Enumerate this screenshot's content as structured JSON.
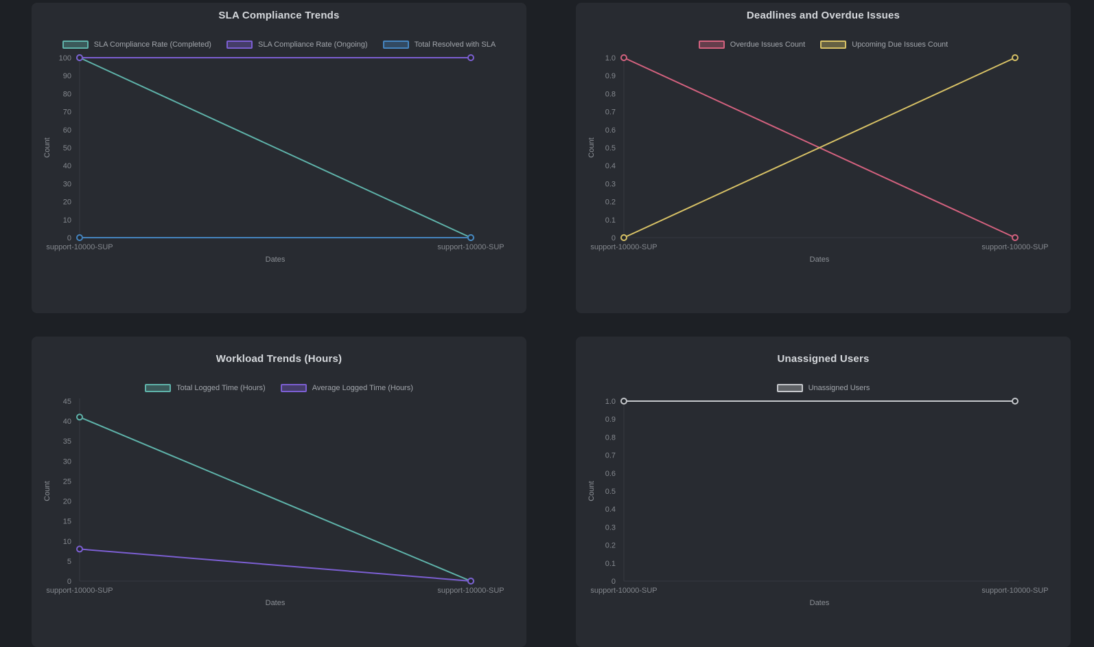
{
  "theme": {
    "page_background": "#1d2025",
    "card_background": "#282b31",
    "title_color": "#d5d8dc",
    "tick_color": "#85898f",
    "point_fill": "#22262b"
  },
  "chart_data": [
    {
      "type": "line",
      "title": "SLA Compliance Trends",
      "categories": [
        "support-10000-SUP",
        "support-10000-SUP"
      ],
      "series": [
        {
          "name": "SLA Compliance Rate (Completed)",
          "color": "#5fb3aa",
          "values": [
            100,
            0
          ]
        },
        {
          "name": "SLA Compliance Rate (Ongoing)",
          "color": "#7c5fd3",
          "values": [
            100,
            100
          ]
        },
        {
          "name": "Total Resolved with SLA",
          "color": "#4585c0",
          "values": [
            0,
            0
          ]
        }
      ],
      "xlabel": "Dates",
      "ylabel": "Count",
      "ylim": [
        0,
        100
      ],
      "yticks": [
        "0",
        "10",
        "20",
        "30",
        "40",
        "50",
        "60",
        "70",
        "80",
        "90",
        "100"
      ],
      "grid": false,
      "legend_position": "top"
    },
    {
      "type": "line",
      "title": "Deadlines and Overdue Issues",
      "categories": [
        "support-10000-SUP",
        "support-10000-SUP"
      ],
      "series": [
        {
          "name": "Overdue Issues Count",
          "color": "#d4627f",
          "values": [
            1,
            0
          ]
        },
        {
          "name": "Upcoming Due Issues Count",
          "color": "#d8c266",
          "values": [
            0,
            1
          ]
        }
      ],
      "xlabel": "Dates",
      "ylabel": "Count",
      "ylim": [
        0,
        1
      ],
      "yticks": [
        "0",
        "0.1",
        "0.2",
        "0.3",
        "0.4",
        "0.5",
        "0.6",
        "0.7",
        "0.8",
        "0.9",
        "1.0"
      ],
      "grid": false,
      "legend_position": "top"
    },
    {
      "type": "line",
      "title": "Workload Trends (Hours)",
      "categories": [
        "support-10000-SUP",
        "support-10000-SUP"
      ],
      "series": [
        {
          "name": "Total Logged Time (Hours)",
          "color": "#5fb3aa",
          "values": [
            41,
            0
          ]
        },
        {
          "name": "Average Logged Time (Hours)",
          "color": "#7c5fd3",
          "values": [
            8,
            0
          ]
        }
      ],
      "xlabel": "Dates",
      "ylabel": "Count",
      "ylim": [
        0,
        45
      ],
      "yticks": [
        "0",
        "5",
        "10",
        "15",
        "20",
        "25",
        "30",
        "35",
        "40",
        "45"
      ],
      "grid": false,
      "legend_position": "top"
    },
    {
      "type": "line",
      "title": "Unassigned Users",
      "categories": [
        "support-10000-SUP",
        "support-10000-SUP"
      ],
      "series": [
        {
          "name": "Unassigned Users",
          "color": "#c6c8cc",
          "values": [
            1,
            1
          ]
        }
      ],
      "xlabel": "Dates",
      "ylabel": "Count",
      "ylim": [
        0,
        1
      ],
      "yticks": [
        "0",
        "0.1",
        "0.2",
        "0.3",
        "0.4",
        "0.5",
        "0.6",
        "0.7",
        "0.8",
        "0.9",
        "1.0"
      ],
      "grid": false,
      "legend_position": "top"
    }
  ]
}
